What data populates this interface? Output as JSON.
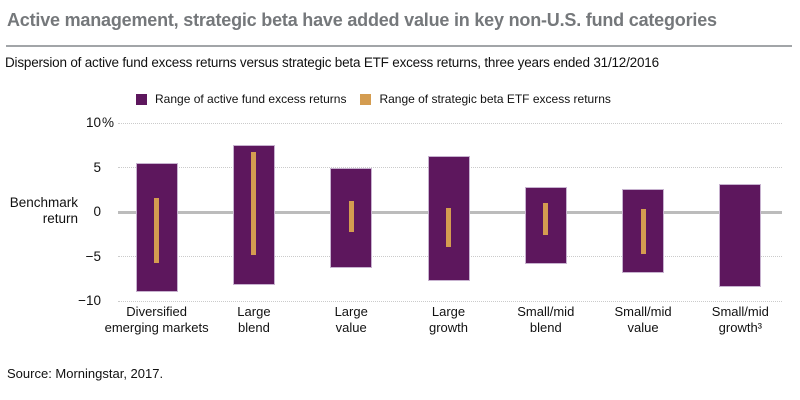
{
  "header": {
    "title": "Active management, strategic beta have added value in key non-U.S. fund categories",
    "subtitle": "Dispersion of active fund excess returns versus strategic beta ETF excess returns, three years ended 31/12/2016"
  },
  "legend": {
    "items": [
      {
        "label": "Range of active fund excess returns",
        "color": "#5d175d"
      },
      {
        "label": "Range of strategic beta ETF excess returns",
        "color": "#d49c50"
      }
    ]
  },
  "y_axis": {
    "title_lines": [
      "Benchmark",
      "return"
    ],
    "ticks": [
      {
        "value": 10,
        "label": "10",
        "suffix": "%"
      },
      {
        "value": 5,
        "label": "5"
      },
      {
        "value": 0,
        "label": "0"
      },
      {
        "value": -5,
        "label": "−5"
      },
      {
        "value": -10,
        "label": "−10"
      }
    ]
  },
  "chart_data": {
    "type": "bar",
    "subtype": "floating-range-bars",
    "title": "Dispersion of active fund excess returns versus strategic beta ETF excess returns, three years ended 31/12/2016",
    "categories": [
      "Diversified emerging markets",
      "Large blend",
      "Large value",
      "Large growth",
      "Small/mid blend",
      "Small/mid value",
      "Small/mid growth³"
    ],
    "category_label_lines": [
      [
        "Diversified",
        "emerging markets"
      ],
      [
        "Large",
        "blend"
      ],
      [
        "Large",
        "value"
      ],
      [
        "Large",
        "growth"
      ],
      [
        "Small/mid",
        "blend"
      ],
      [
        "Small/mid",
        "value"
      ],
      [
        "Small/mid",
        "growth³"
      ]
    ],
    "series": [
      {
        "name": "Range of active fund excess returns",
        "color": "#5d175d",
        "ranges": [
          {
            "high": 5.5,
            "low": -9.0
          },
          {
            "high": 7.5,
            "low": -8.2
          },
          {
            "high": 5.0,
            "low": -6.3
          },
          {
            "high": 6.3,
            "low": -7.8
          },
          {
            "high": 2.8,
            "low": -5.8
          },
          {
            "high": 2.6,
            "low": -6.9
          },
          {
            "high": 3.2,
            "low": -8.4
          }
        ]
      },
      {
        "name": "Range of strategic beta ETF excess returns",
        "color": "#d49c50",
        "ranges": [
          {
            "high": 1.6,
            "low": -5.7
          },
          {
            "high": 6.7,
            "low": -4.8
          },
          {
            "high": 1.2,
            "low": -2.2
          },
          {
            "high": 0.5,
            "low": -3.9
          },
          {
            "high": 1.0,
            "low": -2.6
          },
          {
            "high": 0.3,
            "low": -4.7
          },
          null
        ]
      }
    ],
    "ylim": [
      -10,
      10
    ],
    "ylabel": "Benchmark return",
    "grid": "horizontal dotted gridlines at 10, 5, -5, -10; solid gray zero line",
    "legend_position": "top"
  },
  "footer": {
    "source": "Source: Morningstar, 2017."
  },
  "colors": {
    "title_gray": "#75787b",
    "zero_line": "#bcbcbc",
    "gridline": "#cbcbcb",
    "bar_border": "#c7b2cf"
  }
}
